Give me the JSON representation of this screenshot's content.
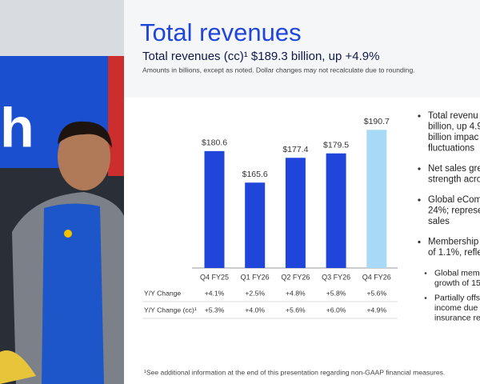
{
  "chart_data": {
    "type": "bar",
    "title": "Total revenues",
    "subtitle": "Total revenues (cc)¹ $189.3 billion, up +4.9%",
    "note": "Amounts in billions, except as noted.  Dollar changes may not recalculate due to rounding.",
    "categories": [
      "Q4 FY25",
      "Q1 FY26",
      "Q2 FY26",
      "Q3 FY26",
      "Q4 FY26"
    ],
    "values": [
      180.6,
      165.6,
      177.4,
      179.5,
      190.7
    ],
    "value_labels": [
      "$180.6",
      "$165.6",
      "$177.4",
      "$179.5",
      "$190.7"
    ],
    "colors": [
      "#1f45db",
      "#1f45db",
      "#1f45db",
      "#1f45db",
      "#a8d9f7"
    ],
    "ylim": [
      125,
      195
    ],
    "table": [
      {
        "label": "Y/Y Change",
        "cells": [
          "+4.1%",
          "+2.5%",
          "+4.8%",
          "+5.8%",
          "+5.6%"
        ]
      },
      {
        "label": "Y/Y Change (cc)¹",
        "cells": [
          "+5.3%",
          "+4.0%",
          "+5.6%",
          "+6.0%",
          "+4.9%"
        ]
      }
    ],
    "footnote": "¹See additional information at the end of this presentation regarding non-GAAP financial measures."
  },
  "bullets": [
    {
      "lines": [
        "Total revenu",
        "billion, up 4.9",
        "billion impac",
        "fluctuations"
      ]
    },
    {
      "lines": [
        "Net sales gre",
        "strength acro"
      ]
    },
    {
      "lines": [
        "Global eCom",
        "24%; represe",
        "sales"
      ]
    },
    {
      "lines": [
        "Membership",
        "of 1.1%, refle"
      ]
    },
    {
      "lines": [
        "Global mem",
        "growth of 15"
      ],
      "sub": true
    },
    {
      "lines": [
        "Partially offs",
        "income due",
        "insurance re"
      ],
      "sub": true
    }
  ]
}
